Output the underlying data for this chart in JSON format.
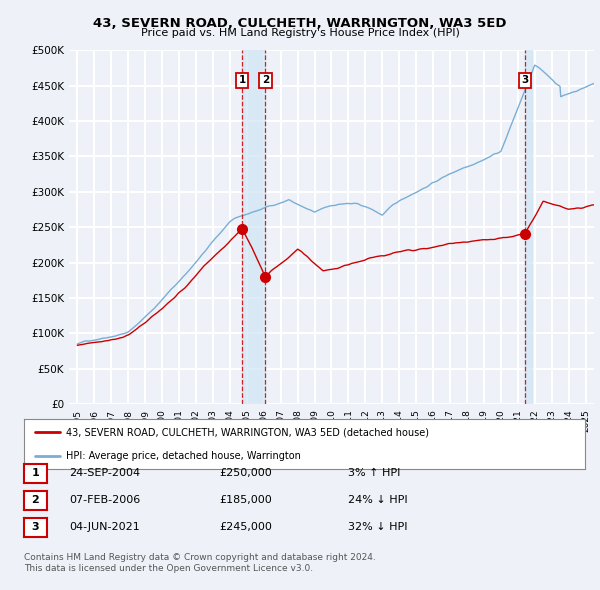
{
  "title": "43, SEVERN ROAD, CULCHETH, WARRINGTON, WA3 5ED",
  "subtitle": "Price paid vs. HM Land Registry's House Price Index (HPI)",
  "ylim": [
    0,
    500000
  ],
  "yticks": [
    0,
    50000,
    100000,
    150000,
    200000,
    250000,
    300000,
    350000,
    400000,
    450000,
    500000
  ],
  "background_color": "#eef2f8",
  "plot_bg_color": "#eef2f8",
  "grid_color": "#ffffff",
  "transaction_dates_num": [
    2004.73,
    2006.09,
    2021.42
  ],
  "transaction_labels": [
    "1",
    "2",
    "3"
  ],
  "transaction_prices": [
    250000,
    185000,
    245000
  ],
  "transaction_color": "#cc0000",
  "transaction_vline_color": "#cc0000",
  "hpi_color": "#7aaed6",
  "shade_color": "#d0e4f5",
  "legend_label_red": "43, SEVERN ROAD, CULCHETH, WARRINGTON, WA3 5ED (detached house)",
  "legend_label_blue": "HPI: Average price, detached house, Warrington",
  "table_data": [
    {
      "num": "1",
      "date": "24-SEP-2004",
      "price": "£250,000",
      "hpi": "3% ↑ HPI"
    },
    {
      "num": "2",
      "date": "07-FEB-2006",
      "price": "£185,000",
      "hpi": "24% ↓ HPI"
    },
    {
      "num": "3",
      "date": "04-JUN-2021",
      "price": "£245,000",
      "hpi": "32% ↓ HPI"
    }
  ],
  "footer": "Contains HM Land Registry data © Crown copyright and database right 2024.\nThis data is licensed under the Open Government Licence v3.0.",
  "xmin": 1994.5,
  "xmax": 2025.5
}
